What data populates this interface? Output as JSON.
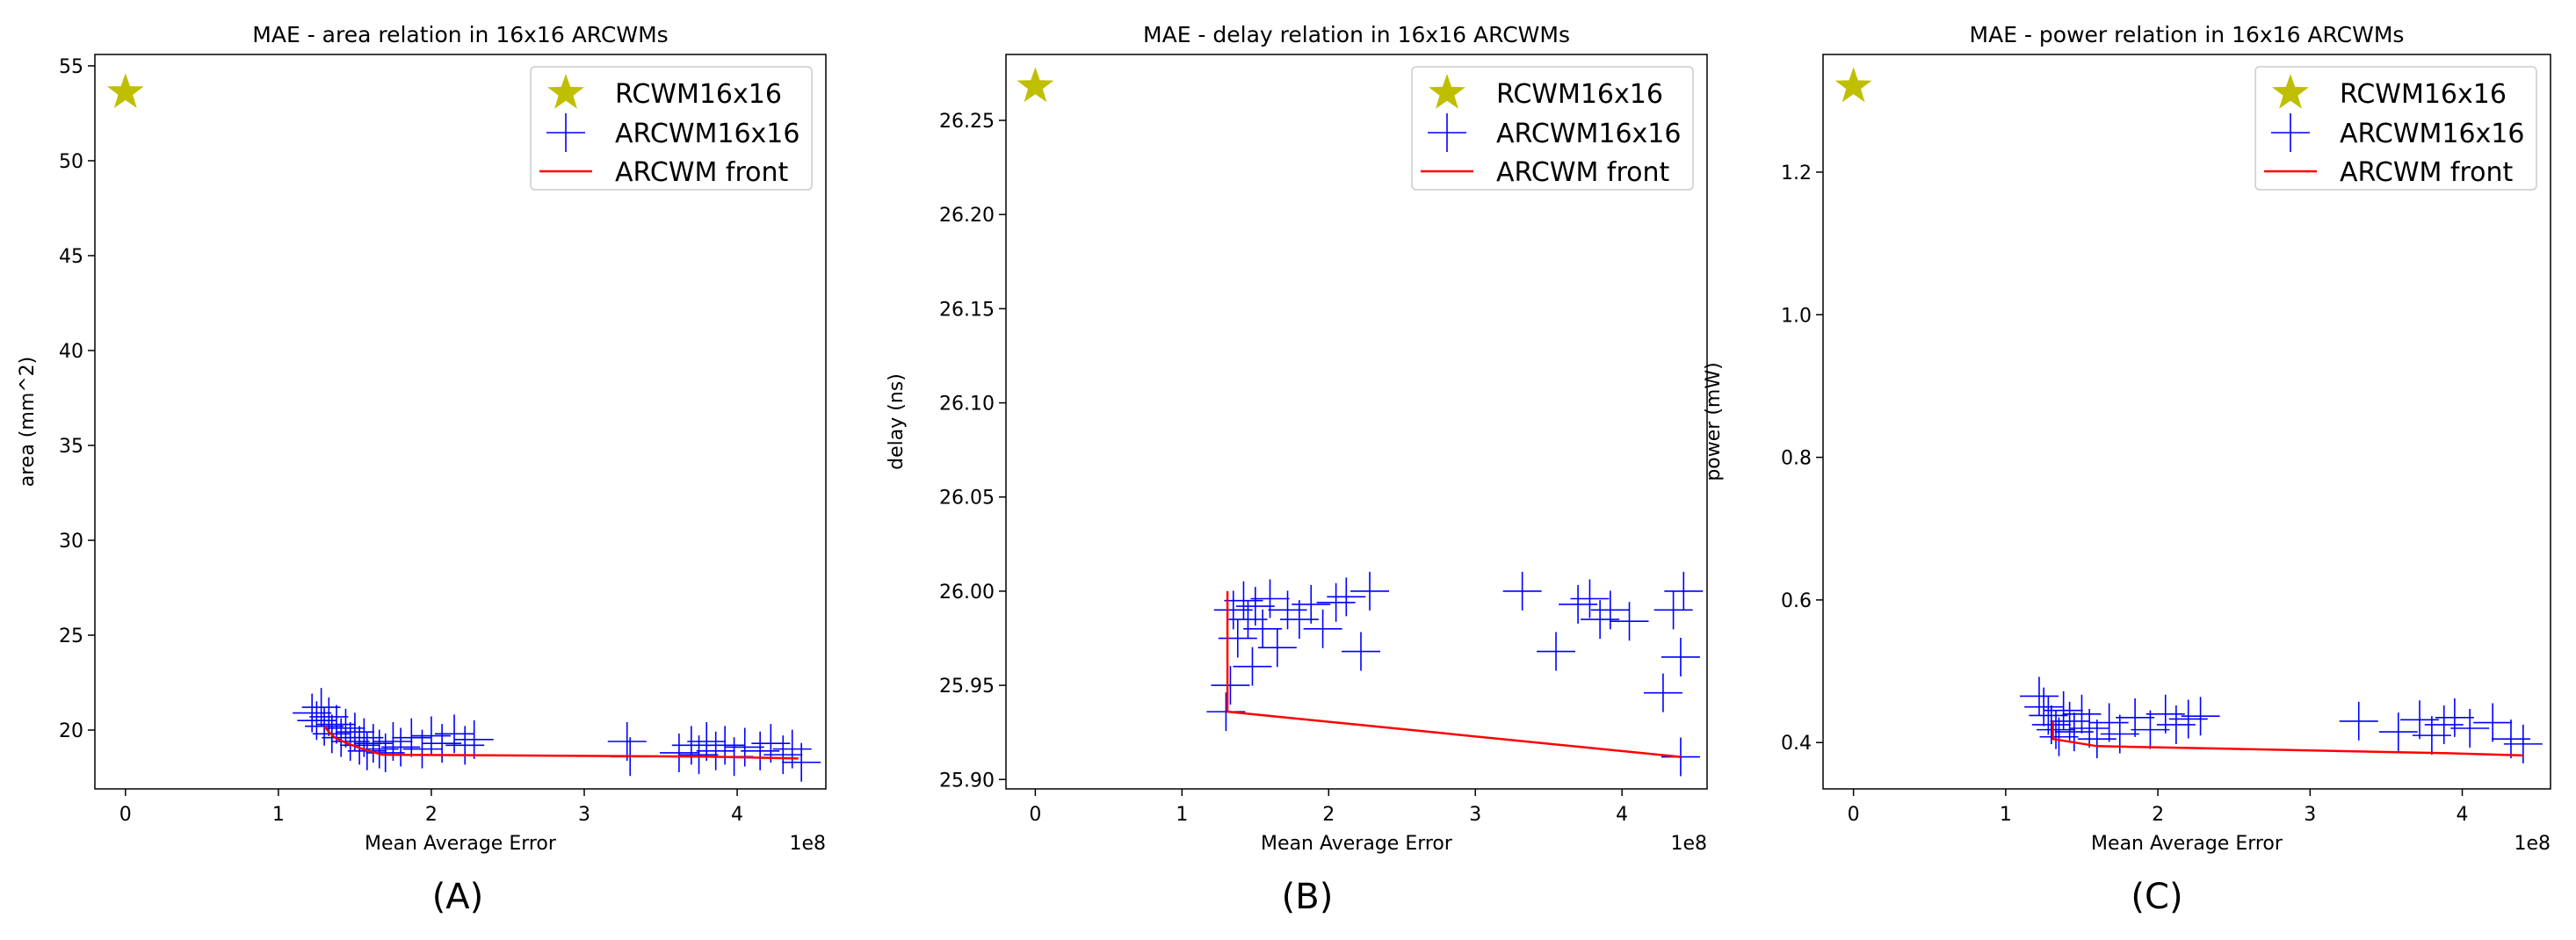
{
  "captions": [
    "(A)",
    "(B)",
    "(C)"
  ],
  "colors": {
    "reference": "#bfbf00",
    "designs": "#0000ff",
    "front": "#ff0000",
    "axes": "#000000"
  },
  "chart_data": [
    {
      "type": "scatter",
      "title": "MAE - area relation in 16x16 ARCWMs",
      "xlabel": "Mean Average Error",
      "ylabel": "area (mm^2)",
      "x_offset_label": "1e8",
      "xlim": [
        -0.2,
        4.58
      ],
      "ylim": [
        16.9,
        55.6
      ],
      "xticks": [
        0,
        1,
        2,
        3,
        4
      ],
      "yticks": [
        20,
        25,
        30,
        35,
        40,
        45,
        50,
        55
      ],
      "legend_position": "top-right",
      "legend": [
        "RCWM16x16",
        "ARCWM16x16",
        "ARCWM front"
      ],
      "series": [
        {
          "name": "RCWM16x16",
          "marker": "star",
          "points": [
            [
              0.0,
              53.6
            ]
          ]
        },
        {
          "name": "ARCWM16x16",
          "marker": "plus",
          "points": [
            [
              1.22,
              20.9
            ],
            [
              1.25,
              20.5
            ],
            [
              1.28,
              21.2
            ],
            [
              1.3,
              20.2
            ],
            [
              1.33,
              20.7
            ],
            [
              1.35,
              19.8
            ],
            [
              1.38,
              20.3
            ],
            [
              1.41,
              19.6
            ],
            [
              1.44,
              20.1
            ],
            [
              1.47,
              19.4
            ],
            [
              1.5,
              19.9
            ],
            [
              1.53,
              19.2
            ],
            [
              1.56,
              19.6
            ],
            [
              1.58,
              18.9
            ],
            [
              1.62,
              19.3
            ],
            [
              1.66,
              19.0
            ],
            [
              1.7,
              18.8
            ],
            [
              1.75,
              19.4
            ],
            [
              1.8,
              19.1
            ],
            [
              1.87,
              19.6
            ],
            [
              1.94,
              19.0
            ],
            [
              2.0,
              19.7
            ],
            [
              2.07,
              19.3
            ],
            [
              2.15,
              19.8
            ],
            [
              2.22,
              19.2
            ],
            [
              2.28,
              19.5
            ],
            [
              3.28,
              19.4
            ],
            [
              3.3,
              18.6
            ],
            [
              3.62,
              18.8
            ],
            [
              3.7,
              19.2
            ],
            [
              3.75,
              18.7
            ],
            [
              3.8,
              19.4
            ],
            [
              3.86,
              18.9
            ],
            [
              3.92,
              19.2
            ],
            [
              3.98,
              18.6
            ],
            [
              4.05,
              19.1
            ],
            [
              4.15,
              18.9
            ],
            [
              4.22,
              19.3
            ],
            [
              4.3,
              18.7
            ],
            [
              4.36,
              19.0
            ],
            [
              4.42,
              18.3
            ]
          ]
        },
        {
          "name": "ARCWM front",
          "marker": "line",
          "points": [
            [
              1.3,
              20.2
            ],
            [
              1.33,
              19.9
            ],
            [
              1.37,
              19.6
            ],
            [
              1.45,
              19.3
            ],
            [
              1.55,
              19.0
            ],
            [
              1.68,
              18.7
            ],
            [
              3.8,
              18.6
            ],
            [
              4.4,
              18.5
            ]
          ]
        }
      ]
    },
    {
      "type": "scatter",
      "title": "MAE - delay relation in 16x16 ARCWMs",
      "xlabel": "Mean Average Error",
      "ylabel": "delay (ns)",
      "x_offset_label": "1e8",
      "xlim": [
        -0.2,
        4.58
      ],
      "ylim": [
        25.895,
        26.285
      ],
      "xticks": [
        0,
        1,
        2,
        3,
        4
      ],
      "yticks": [
        25.9,
        25.95,
        26.0,
        26.05,
        26.1,
        26.15,
        26.2,
        26.25
      ],
      "legend_position": "top-right",
      "legend": [
        "RCWM16x16",
        "ARCWM16x16",
        "ARCWM front"
      ],
      "series": [
        {
          "name": "RCWM16x16",
          "marker": "star",
          "points": [
            [
              0.0,
              26.268
            ]
          ]
        },
        {
          "name": "ARCWM16x16",
          "marker": "plus",
          "points": [
            [
              1.3,
              25.936
            ],
            [
              1.33,
              25.95
            ],
            [
              1.35,
              25.99
            ],
            [
              1.38,
              25.975
            ],
            [
              1.42,
              25.995
            ],
            [
              1.45,
              25.985
            ],
            [
              1.48,
              25.96
            ],
            [
              1.5,
              25.992
            ],
            [
              1.55,
              25.98
            ],
            [
              1.6,
              25.996
            ],
            [
              1.65,
              25.97
            ],
            [
              1.72,
              25.99
            ],
            [
              1.8,
              25.985
            ],
            [
              1.88,
              25.993
            ],
            [
              1.96,
              25.98
            ],
            [
              2.05,
              25.994
            ],
            [
              2.12,
              25.997
            ],
            [
              2.22,
              25.968
            ],
            [
              2.28,
              26.0
            ],
            [
              3.32,
              26.0
            ],
            [
              3.55,
              25.968
            ],
            [
              3.7,
              25.993
            ],
            [
              3.78,
              25.996
            ],
            [
              3.85,
              25.985
            ],
            [
              3.92,
              25.99
            ],
            [
              4.05,
              25.984
            ],
            [
              4.28,
              25.946
            ],
            [
              4.35,
              25.99
            ],
            [
              4.4,
              25.965
            ],
            [
              4.42,
              26.0
            ],
            [
              4.4,
              25.912
            ]
          ]
        },
        {
          "name": "ARCWM front",
          "marker": "line",
          "points": [
            [
              1.31,
              26.0
            ],
            [
              1.31,
              25.936
            ],
            [
              4.4,
              25.912
            ]
          ]
        }
      ]
    },
    {
      "type": "scatter",
      "title": "MAE - power relation in 16x16 ARCWMs",
      "xlabel": "Mean Average Error",
      "ylabel": "power (mW)",
      "x_offset_label": "1e8",
      "xlim": [
        -0.2,
        4.58
      ],
      "ylim": [
        0.335,
        1.365
      ],
      "xticks": [
        0,
        1,
        2,
        3,
        4
      ],
      "yticks": [
        0.4,
        0.6,
        0.8,
        1.0,
        1.2
      ],
      "legend_position": "top-right",
      "legend": [
        "RCWM16x16",
        "ARCWM16x16",
        "ARCWM front"
      ],
      "series": [
        {
          "name": "RCWM16x16",
          "marker": "star",
          "points": [
            [
              0.0,
              1.32
            ]
          ]
        },
        {
          "name": "ARCWM16x16",
          "marker": "plus",
          "points": [
            [
              1.22,
              0.465
            ],
            [
              1.25,
              0.45
            ],
            [
              1.28,
              0.438
            ],
            [
              1.3,
              0.425
            ],
            [
              1.33,
              0.418
            ],
            [
              1.35,
              0.408
            ],
            [
              1.38,
              0.445
            ],
            [
              1.42,
              0.43
            ],
            [
              1.45,
              0.415
            ],
            [
              1.5,
              0.44
            ],
            [
              1.55,
              0.42
            ],
            [
              1.6,
              0.405
            ],
            [
              1.68,
              0.428
            ],
            [
              1.75,
              0.412
            ],
            [
              1.85,
              0.435
            ],
            [
              1.95,
              0.418
            ],
            [
              2.05,
              0.44
            ],
            [
              2.12,
              0.425
            ],
            [
              2.2,
              0.433
            ],
            [
              2.28,
              0.437
            ],
            [
              3.32,
              0.43
            ],
            [
              3.58,
              0.415
            ],
            [
              3.72,
              0.432
            ],
            [
              3.8,
              0.41
            ],
            [
              3.88,
              0.425
            ],
            [
              3.95,
              0.435
            ],
            [
              4.05,
              0.42
            ],
            [
              4.2,
              0.428
            ],
            [
              4.32,
              0.405
            ],
            [
              4.4,
              0.398
            ]
          ]
        },
        {
          "name": "ARCWM front",
          "marker": "line",
          "points": [
            [
              1.31,
              0.43
            ],
            [
              1.31,
              0.405
            ],
            [
              1.6,
              0.395
            ],
            [
              3.9,
              0.385
            ],
            [
              4.4,
              0.382
            ]
          ]
        }
      ]
    }
  ]
}
